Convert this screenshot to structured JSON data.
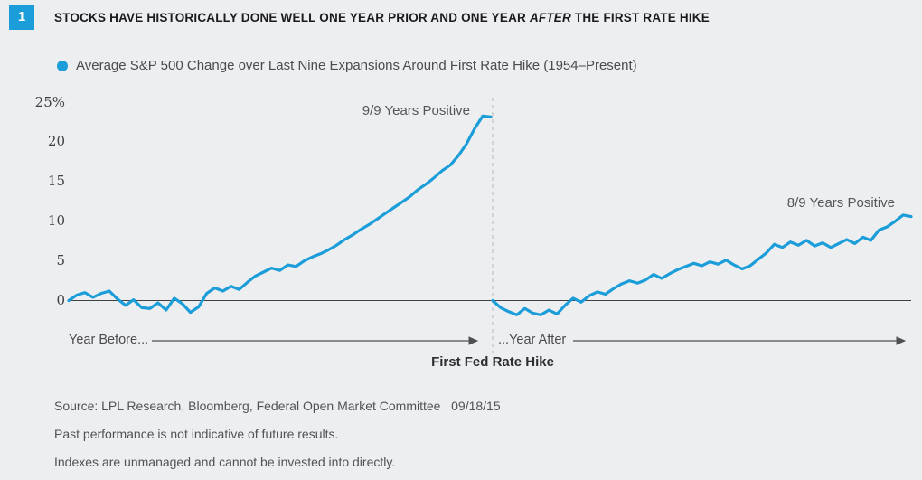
{
  "colors": {
    "accent": "#1b9dd9",
    "background": "#edeef0",
    "title_text": "#1b1b1d",
    "body_text": "#4b4b4d",
    "axis_line": "#3f4144",
    "dashed_line": "#b7babc"
  },
  "badge": "1",
  "title": {
    "part1": "STOCKS HAVE HISTORICALLY DONE WELL ONE YEAR PRIOR AND ONE YEAR",
    "italic": "AFTER",
    "part2": "THE FIRST RATE HIKE"
  },
  "legend": {
    "label": "Average S&P 500 Change over Last Nine Expansions Around First Rate Hike (1954–Present)"
  },
  "chart_data": {
    "type": "line",
    "title": "Average S&P 500 Change over Last Nine Expansions Around First Rate Hike (1954–Present)",
    "xlabel": "",
    "ylabel": "",
    "ylim": [
      -2.5,
      25
    ],
    "grid": false,
    "legend_position": "top-left",
    "x_unit": "weeks relative to first Fed rate hike (one year before through one year after)",
    "yticks": [
      {
        "label": "25%",
        "value": 25
      },
      {
        "label": "20",
        "value": 20
      },
      {
        "label": "15",
        "value": 15
      },
      {
        "label": "10",
        "value": 10
      },
      {
        "label": "5",
        "value": 5
      },
      {
        "label": "0",
        "value": 0
      }
    ],
    "series": [
      {
        "name": "Year Before First Rate Hike",
        "x_range_weeks": [
          -52,
          0
        ],
        "values": [
          0.0,
          0.7,
          1.0,
          0.4,
          0.9,
          1.2,
          0.2,
          -0.6,
          0.1,
          -0.9,
          -1.0,
          -0.3,
          -1.2,
          0.3,
          -0.4,
          -1.5,
          -0.8,
          0.9,
          1.6,
          1.2,
          1.8,
          1.4,
          2.3,
          3.1,
          3.6,
          4.1,
          3.8,
          4.5,
          4.3,
          5.0,
          5.5,
          5.9,
          6.4,
          7.0,
          7.7,
          8.3,
          9.0,
          9.6,
          10.3,
          11.0,
          11.7,
          12.4,
          13.1,
          14.0,
          14.7,
          15.5,
          16.4,
          17.1,
          18.3,
          19.8,
          21.7,
          23.3,
          23.2
        ]
      },
      {
        "name": "Year After First Rate Hike",
        "x_range_weeks": [
          0,
          52
        ],
        "values": [
          0.0,
          -0.9,
          -1.4,
          -1.8,
          -1.0,
          -1.6,
          -1.8,
          -1.2,
          -1.7,
          -0.6,
          0.3,
          -0.2,
          0.6,
          1.1,
          0.8,
          1.5,
          2.1,
          2.5,
          2.2,
          2.6,
          3.3,
          2.8,
          3.4,
          3.9,
          4.3,
          4.7,
          4.4,
          4.9,
          4.6,
          5.1,
          4.5,
          4.0,
          4.4,
          5.2,
          6.0,
          7.1,
          6.7,
          7.4,
          7.0,
          7.6,
          6.9,
          7.3,
          6.7,
          7.2,
          7.7,
          7.2,
          8.0,
          7.6,
          8.9,
          9.3,
          10.0,
          10.8,
          10.6
        ]
      }
    ],
    "annotations": [
      {
        "label": "9/9 Years Positive",
        "position": "near pre-hike peak"
      },
      {
        "label": "8/9 Years Positive",
        "position": "near post-hike end"
      }
    ],
    "xlabels": {
      "before": "Year Before...",
      "after": "...Year After",
      "event": "First Fed Rate Hike"
    }
  },
  "footer": {
    "source": "Source: LPL Research, Bloomberg, Federal Open Market Committee   09/18/15",
    "past_performance": "Past performance is not indicative of future results.",
    "indexes": "Indexes are unmanaged and cannot be invested into directly."
  }
}
